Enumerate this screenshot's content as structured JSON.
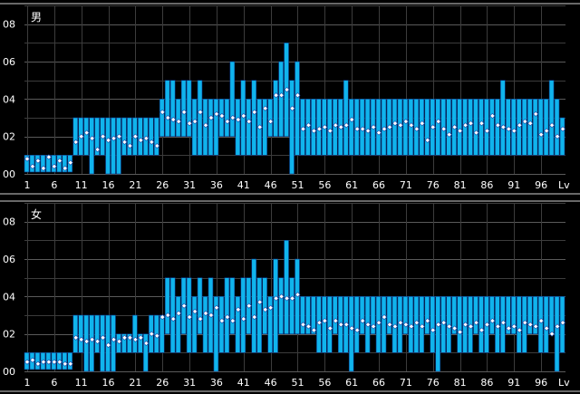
{
  "chart_data": [
    {
      "type": "bar",
      "title": "男",
      "xlabel": "Lv",
      "x_tick_labels": [
        "1",
        "6",
        "11",
        "16",
        "21",
        "26",
        "31",
        "36",
        "41",
        "46",
        "51",
        "56",
        "61",
        "66",
        "71",
        "76",
        "81",
        "86",
        "91",
        "96"
      ],
      "y_tick_labels": [
        "00",
        "02",
        "04",
        "06",
        "08"
      ],
      "ylim": [
        0,
        9
      ],
      "grid": true,
      "series": [
        {
          "values": {
            "min": [
              0.1,
              0.1,
              0.1,
              0.1,
              0.1,
              0.1,
              0.1,
              0.1,
              0.1,
              1,
              1,
              1,
              0,
              1,
              1,
              0,
              0,
              0,
              1,
              1,
              1,
              1,
              1,
              1,
              1,
              2,
              2,
              2,
              2,
              2,
              2,
              1,
              1,
              1,
              1,
              1,
              2,
              2,
              2,
              1,
              1,
              1,
              1,
              1,
              1,
              2,
              2,
              2,
              2,
              0,
              1,
              1,
              1,
              1,
              1,
              1,
              1,
              1,
              1,
              1,
              1,
              1,
              1,
              1,
              1,
              1,
              1,
              1,
              1,
              1,
              1,
              1,
              1,
              1,
              1,
              1,
              1,
              1,
              1,
              1,
              1,
              1,
              1,
              1,
              1,
              1,
              1,
              1,
              1,
              1,
              1,
              1,
              1,
              1,
              1,
              1,
              1,
              1,
              1,
              1
            ],
            "max": [
              1,
              1,
              1,
              1,
              1,
              1,
              1,
              1,
              1,
              3,
              3,
              3,
              3,
              3,
              3,
              3,
              3,
              3,
              3,
              3,
              3,
              3,
              3,
              3,
              3,
              4,
              5,
              5,
              4,
              5,
              5,
              4,
              5,
              4,
              4,
              4,
              4,
              4,
              6,
              4,
              5,
              4,
              5,
              4,
              4,
              4,
              5,
              6,
              7,
              5,
              6,
              4,
              4,
              4,
              4,
              4,
              4,
              4,
              4,
              5,
              4,
              4,
              4,
              4,
              4,
              4,
              4,
              4,
              4,
              4,
              4,
              4,
              4,
              4,
              4,
              4,
              4,
              4,
              4,
              4,
              4,
              4,
              4,
              4,
              4,
              4,
              4,
              4,
              5,
              4,
              4,
              4,
              4,
              4,
              4,
              4,
              4,
              5,
              4,
              3
            ],
            "avg": [
              0.8,
              0.4,
              0.7,
              0.3,
              0.9,
              0.4,
              0.7,
              0.3,
              0.6,
              1.7,
              2.0,
              2.2,
              1.9,
              1.3,
              2.0,
              1.8,
              1.9,
              2.0,
              1.7,
              1.5,
              2.0,
              1.8,
              1.9,
              1.7,
              1.5,
              3.3,
              3.0,
              2.9,
              2.8,
              3.3,
              2.7,
              2.8,
              3.3,
              2.6,
              3.0,
              3.2,
              3.1,
              2.8,
              3.0,
              2.9,
              3.1,
              2.8,
              3.3,
              2.5,
              3.5,
              2.8,
              4.2,
              4.2,
              4.5,
              3.5,
              4.2,
              2.4,
              2.6,
              2.3,
              2.4,
              2.5,
              2.3,
              2.6,
              2.5,
              2.6,
              2.9,
              2.4,
              2.4,
              2.3,
              2.5,
              2.2,
              2.4,
              2.5,
              2.7,
              2.6,
              2.8,
              2.6,
              2.4,
              2.7,
              1.8,
              2.5,
              2.8,
              2.4,
              2.1,
              2.5,
              2.3,
              2.6,
              2.7,
              2.2,
              2.7,
              2.3,
              3.1,
              2.6,
              2.5,
              2.4,
              2.3,
              2.6,
              2.8,
              2.7,
              3.2,
              2.1,
              2.3,
              2.6,
              2.0,
              2.4
            ]
          }
        }
      ]
    },
    {
      "type": "bar",
      "title": "女",
      "xlabel": "Lv",
      "x_tick_labels": [
        "1",
        "6",
        "11",
        "16",
        "21",
        "26",
        "31",
        "36",
        "41",
        "46",
        "51",
        "56",
        "61",
        "66",
        "71",
        "76",
        "81",
        "86",
        "91",
        "96"
      ],
      "y_tick_labels": [
        "00",
        "02",
        "04",
        "06",
        "08"
      ],
      "ylim": [
        0,
        9
      ],
      "grid": true,
      "series": [
        {
          "values": {
            "min": [
              0.1,
              0.1,
              0.1,
              0.1,
              0.1,
              0.1,
              0.1,
              0.1,
              0.1,
              1,
              1,
              0,
              0,
              1,
              0,
              0,
              0,
              1,
              1,
              1,
              1,
              1,
              0,
              1,
              1,
              1,
              2,
              1,
              1,
              2,
              1,
              1,
              2,
              1,
              1,
              0,
              1,
              1,
              2,
              1,
              1,
              2,
              1,
              1,
              2,
              1,
              1,
              2,
              2,
              2,
              2,
              2,
              2,
              2,
              1,
              1,
              1,
              2,
              1,
              1,
              0,
              1,
              2,
              1,
              2,
              1,
              1,
              2,
              1,
              1,
              2,
              1,
              1,
              1,
              2,
              1,
              0,
              1,
              1,
              2,
              1,
              1,
              1,
              2,
              1,
              1,
              2,
              1,
              1,
              2,
              2,
              1,
              1,
              2,
              2,
              1,
              1,
              2,
              0,
              1
            ],
            "max": [
              1,
              1,
              1,
              1,
              1,
              1,
              1,
              1,
              1,
              3,
              3,
              3,
              3,
              3,
              3,
              3,
              3,
              2,
              2,
              2,
              3,
              2,
              2,
              3,
              3,
              3,
              5,
              5,
              4,
              5,
              5,
              4,
              5,
              4,
              5,
              4,
              4,
              5,
              5,
              4,
              5,
              5,
              6,
              5,
              5,
              4,
              6,
              5,
              7,
              5,
              6,
              4,
              4,
              4,
              4,
              4,
              4,
              4,
              4,
              4,
              4,
              4,
              4,
              4,
              4,
              4,
              4,
              4,
              4,
              4,
              4,
              4,
              4,
              4,
              4,
              4,
              4,
              4,
              4,
              4,
              4,
              4,
              4,
              4,
              4,
              4,
              4,
              4,
              4,
              4,
              4,
              4,
              4,
              4,
              4,
              4,
              4,
              4,
              4,
              4
            ],
            "avg": [
              0.5,
              0.6,
              0.4,
              0.5,
              0.5,
              0.5,
              0.5,
              0.4,
              0.4,
              1.8,
              1.7,
              1.6,
              1.7,
              1.6,
              1.8,
              1.4,
              1.7,
              1.6,
              1.8,
              1.8,
              1.7,
              1.8,
              1.5,
              2.0,
              1.9,
              2.9,
              3.0,
              2.8,
              3.1,
              3.5,
              2.9,
              3.2,
              2.8,
              3.1,
              3.0,
              3.4,
              2.7,
              2.9,
              2.7,
              3.3,
              2.8,
              3.5,
              2.9,
              3.7,
              3.3,
              3.4,
              3.9,
              4.0,
              3.9,
              3.9,
              4.1,
              2.5,
              2.4,
              2.2,
              2.6,
              2.7,
              2.3,
              2.7,
              2.5,
              2.5,
              2.3,
              2.2,
              2.7,
              2.5,
              2.4,
              2.6,
              2.9,
              2.5,
              2.4,
              2.6,
              2.5,
              2.4,
              2.6,
              2.4,
              2.7,
              2.2,
              2.5,
              2.6,
              2.4,
              2.3,
              2.1,
              2.5,
              2.4,
              2.6,
              2.2,
              2.5,
              2.7,
              2.4,
              2.6,
              2.3,
              2.4,
              2.2,
              2.6,
              2.5,
              2.4,
              2.7,
              2.3,
              2.0,
              2.4,
              2.6
            ]
          }
        }
      ]
    }
  ]
}
